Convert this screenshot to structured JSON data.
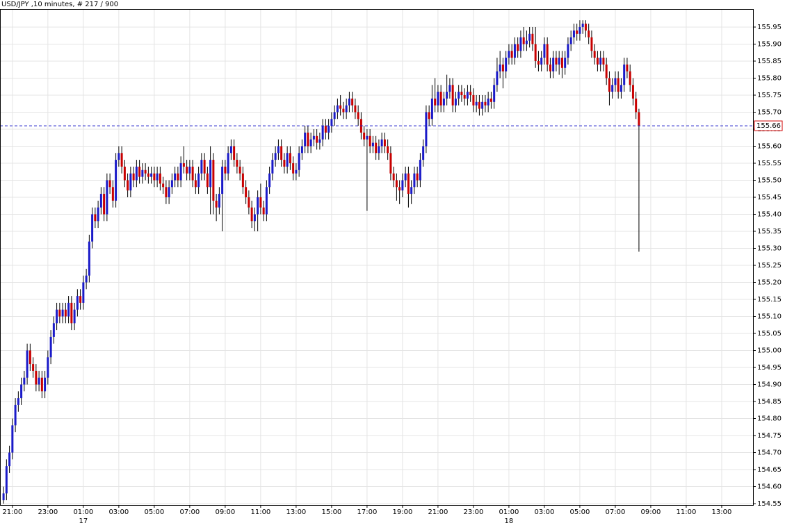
{
  "chart_data": {
    "type": "candlestick",
    "title": "USD/JPY ,10 minutes, # 217 / 900",
    "up_color": "#1a1ac8",
    "down_color": "#c80000",
    "grid": true,
    "grid_color": "#e4e4e4",
    "last_price": 155.66,
    "last_price_color": "#1a1ac8",
    "last_price_label_color": "#d00000",
    "open": [
      154.56,
      154.58,
      154.66,
      154.7,
      154.78,
      154.84,
      154.86,
      154.9,
      154.92,
      155.0,
      154.96,
      154.94,
      154.9,
      154.92,
      154.88,
      154.92,
      154.98,
      155.04,
      155.08,
      155.12,
      155.1,
      155.12,
      155.1,
      155.14,
      155.08,
      155.12,
      155.16,
      155.14,
      155.2,
      155.22,
      155.32,
      155.4,
      155.38,
      155.42,
      155.46,
      155.4,
      155.5,
      155.48,
      155.44,
      155.56,
      155.58,
      155.54,
      155.5,
      155.47,
      155.52,
      155.5,
      155.54,
      155.51,
      155.53,
      155.52,
      155.51,
      155.52,
      155.5,
      155.52,
      155.49,
      155.48,
      155.45,
      155.48,
      155.5,
      155.52,
      155.5,
      155.55,
      155.54,
      155.52,
      155.54,
      155.5,
      155.48,
      155.52,
      155.56,
      155.52,
      155.48,
      155.56,
      155.44,
      155.42,
      155.46,
      155.54,
      155.52,
      155.58,
      155.6,
      155.56,
      155.54,
      155.52,
      155.48,
      155.45,
      155.42,
      155.38,
      155.4,
      155.45,
      155.42,
      155.4,
      155.48,
      155.52,
      155.56,
      155.58,
      155.6,
      155.56,
      155.54,
      155.58,
      155.55,
      155.52,
      155.53,
      155.58,
      155.6,
      155.64,
      155.6,
      155.62,
      155.63,
      155.61,
      155.62,
      155.66,
      155.64,
      155.66,
      155.68,
      155.7,
      155.72,
      155.71,
      155.7,
      155.72,
      155.74,
      155.72,
      155.7,
      155.68,
      155.64,
      155.62,
      155.63,
      155.6,
      155.61,
      155.58,
      155.6,
      155.62,
      155.6,
      155.58,
      155.52,
      155.5,
      155.48,
      155.47,
      155.5,
      155.52,
      155.46,
      155.48,
      155.52,
      155.5,
      155.56,
      155.6,
      155.7,
      155.68,
      155.74,
      155.72,
      155.76,
      155.72,
      155.74,
      155.76,
      155.78,
      155.72,
      155.74,
      155.76,
      155.75,
      155.74,
      155.76,
      155.75,
      155.72,
      155.73,
      155.71,
      155.73,
      155.72,
      155.74,
      155.73,
      155.78,
      155.82,
      155.84,
      155.82,
      155.86,
      155.88,
      155.86,
      155.9,
      155.88,
      155.92,
      155.9,
      155.91,
      155.93,
      155.9,
      155.85,
      155.84,
      155.86,
      155.9,
      155.84,
      155.82,
      155.86,
      155.84,
      155.86,
      155.83,
      155.86,
      155.9,
      155.92,
      155.94,
      155.93,
      155.95,
      155.96,
      155.94,
      155.92,
      155.88,
      155.86,
      155.84,
      155.86,
      155.84,
      155.8,
      155.76,
      155.78,
      155.8,
      155.76,
      155.78,
      155.84,
      155.82,
      155.78,
      155.74,
      155.7
    ],
    "high": [
      154.6,
      154.68,
      154.72,
      154.8,
      154.86,
      154.88,
      154.92,
      154.94,
      155.02,
      155.02,
      154.98,
      154.96,
      154.94,
      154.94,
      154.94,
      155.0,
      155.06,
      155.1,
      155.14,
      155.14,
      155.14,
      155.14,
      155.16,
      155.16,
      155.14,
      155.18,
      155.18,
      155.22,
      155.24,
      155.34,
      155.42,
      155.42,
      155.44,
      155.48,
      155.48,
      155.52,
      155.52,
      155.5,
      155.58,
      155.6,
      155.6,
      155.56,
      155.52,
      155.54,
      155.54,
      155.56,
      155.56,
      155.55,
      155.55,
      155.54,
      155.54,
      155.54,
      155.54,
      155.54,
      155.51,
      155.5,
      155.5,
      155.52,
      155.54,
      155.54,
      155.57,
      155.6,
      155.56,
      155.56,
      155.56,
      155.52,
      155.54,
      155.58,
      155.58,
      155.54,
      155.6,
      155.58,
      155.46,
      155.48,
      155.56,
      155.56,
      155.6,
      155.62,
      155.62,
      155.58,
      155.56,
      155.54,
      155.5,
      155.47,
      155.44,
      155.42,
      155.47,
      155.49,
      155.44,
      155.5,
      155.54,
      155.58,
      155.6,
      155.62,
      155.62,
      155.58,
      155.6,
      155.6,
      155.57,
      155.55,
      155.6,
      155.62,
      155.66,
      155.66,
      155.64,
      155.65,
      155.65,
      155.64,
      155.68,
      155.68,
      155.68,
      155.7,
      155.72,
      155.74,
      155.75,
      155.73,
      155.74,
      155.76,
      155.76,
      155.74,
      155.72,
      155.7,
      155.66,
      155.65,
      155.65,
      155.63,
      155.63,
      155.62,
      155.64,
      155.64,
      155.62,
      155.6,
      155.54,
      155.52,
      155.5,
      155.52,
      155.54,
      155.54,
      155.5,
      155.54,
      155.54,
      155.58,
      155.62,
      155.72,
      155.72,
      155.78,
      155.8,
      155.78,
      155.78,
      155.76,
      155.81,
      155.8,
      155.8,
      155.76,
      155.78,
      155.78,
      155.77,
      155.78,
      155.78,
      155.77,
      155.75,
      155.75,
      155.75,
      155.75,
      155.76,
      155.76,
      155.8,
      155.86,
      155.88,
      155.86,
      155.88,
      155.9,
      155.9,
      155.92,
      155.92,
      155.94,
      155.95,
      155.94,
      155.95,
      155.95,
      155.95,
      155.88,
      155.88,
      155.92,
      155.92,
      155.86,
      155.88,
      155.88,
      155.88,
      155.88,
      155.88,
      155.92,
      155.94,
      155.96,
      155.96,
      155.97,
      155.97,
      155.97,
      155.96,
      155.94,
      155.9,
      155.88,
      155.88,
      155.88,
      155.86,
      155.82,
      155.8,
      155.82,
      155.82,
      155.8,
      155.86,
      155.86,
      155.84,
      155.8,
      155.76,
      155.71
    ],
    "low": [
      154.55,
      154.56,
      154.64,
      154.68,
      154.76,
      154.82,
      154.84,
      154.88,
      154.9,
      154.94,
      154.92,
      154.88,
      154.88,
      154.86,
      154.86,
      154.9,
      154.96,
      155.02,
      155.06,
      155.08,
      155.08,
      155.08,
      155.08,
      155.06,
      155.06,
      155.1,
      155.12,
      155.12,
      155.18,
      155.2,
      155.3,
      155.36,
      155.36,
      155.4,
      155.38,
      155.38,
      155.46,
      155.42,
      155.42,
      155.54,
      155.52,
      155.48,
      155.45,
      155.45,
      155.48,
      155.48,
      155.49,
      155.49,
      155.5,
      155.49,
      155.49,
      155.48,
      155.48,
      155.47,
      155.46,
      155.43,
      155.43,
      155.46,
      155.48,
      155.48,
      155.48,
      155.52,
      155.5,
      155.5,
      155.48,
      155.46,
      155.46,
      155.5,
      155.5,
      155.46,
      155.4,
      155.4,
      155.38,
      155.4,
      155.35,
      155.5,
      155.5,
      155.56,
      155.54,
      155.52,
      155.5,
      155.46,
      155.43,
      155.4,
      155.36,
      155.35,
      155.35,
      155.4,
      155.38,
      155.38,
      155.46,
      155.5,
      155.54,
      155.56,
      155.54,
      155.52,
      155.52,
      155.53,
      155.5,
      155.5,
      155.51,
      155.56,
      155.58,
      155.58,
      155.58,
      155.6,
      155.59,
      155.59,
      155.6,
      155.62,
      155.62,
      155.64,
      155.66,
      155.68,
      155.69,
      155.68,
      155.68,
      155.7,
      155.7,
      155.68,
      155.66,
      155.62,
      155.6,
      155.41,
      155.58,
      155.58,
      155.56,
      155.56,
      155.58,
      155.58,
      155.56,
      155.5,
      155.48,
      155.44,
      155.43,
      155.45,
      155.48,
      155.42,
      155.43,
      155.46,
      155.48,
      155.48,
      155.54,
      155.58,
      155.66,
      155.66,
      155.7,
      155.7,
      155.7,
      155.7,
      155.72,
      155.74,
      155.7,
      155.7,
      155.72,
      155.73,
      155.72,
      155.72,
      155.73,
      155.7,
      155.7,
      155.69,
      155.69,
      155.7,
      155.7,
      155.71,
      155.71,
      155.76,
      155.8,
      155.77,
      155.8,
      155.84,
      155.84,
      155.84,
      155.86,
      155.86,
      155.88,
      155.88,
      155.89,
      155.88,
      155.83,
      155.82,
      155.82,
      155.84,
      155.82,
      155.8,
      155.8,
      155.82,
      155.81,
      155.8,
      155.81,
      155.84,
      155.88,
      155.9,
      155.91,
      155.91,
      155.93,
      155.92,
      155.9,
      155.86,
      155.84,
      155.82,
      155.82,
      155.82,
      155.78,
      155.72,
      155.74,
      155.76,
      155.74,
      155.74,
      155.76,
      155.8,
      155.76,
      155.72,
      155.68,
      155.29
    ],
    "close": [
      154.58,
      154.66,
      154.7,
      154.78,
      154.84,
      154.86,
      154.9,
      154.92,
      155.0,
      154.96,
      154.94,
      154.9,
      154.92,
      154.88,
      154.92,
      154.98,
      155.04,
      155.08,
      155.12,
      155.1,
      155.12,
      155.1,
      155.14,
      155.08,
      155.12,
      155.16,
      155.14,
      155.2,
      155.22,
      155.32,
      155.4,
      155.38,
      155.42,
      155.46,
      155.4,
      155.5,
      155.48,
      155.44,
      155.56,
      155.58,
      155.54,
      155.5,
      155.47,
      155.52,
      155.5,
      155.54,
      155.51,
      155.53,
      155.52,
      155.51,
      155.52,
      155.5,
      155.52,
      155.49,
      155.48,
      155.45,
      155.48,
      155.5,
      155.52,
      155.5,
      155.55,
      155.54,
      155.52,
      155.54,
      155.5,
      155.48,
      155.52,
      155.56,
      155.52,
      155.48,
      155.56,
      155.44,
      155.42,
      155.46,
      155.54,
      155.52,
      155.58,
      155.6,
      155.56,
      155.54,
      155.52,
      155.48,
      155.45,
      155.42,
      155.38,
      155.4,
      155.45,
      155.42,
      155.4,
      155.48,
      155.52,
      155.56,
      155.58,
      155.6,
      155.56,
      155.54,
      155.58,
      155.55,
      155.52,
      155.53,
      155.58,
      155.6,
      155.64,
      155.6,
      155.62,
      155.63,
      155.61,
      155.62,
      155.66,
      155.64,
      155.66,
      155.68,
      155.7,
      155.72,
      155.71,
      155.7,
      155.72,
      155.74,
      155.72,
      155.7,
      155.68,
      155.64,
      155.62,
      155.63,
      155.6,
      155.61,
      155.58,
      155.6,
      155.62,
      155.6,
      155.58,
      155.52,
      155.5,
      155.48,
      155.47,
      155.5,
      155.52,
      155.46,
      155.48,
      155.52,
      155.5,
      155.56,
      155.6,
      155.7,
      155.68,
      155.74,
      155.72,
      155.76,
      155.72,
      155.74,
      155.76,
      155.78,
      155.72,
      155.74,
      155.76,
      155.75,
      155.74,
      155.76,
      155.75,
      155.72,
      155.73,
      155.71,
      155.73,
      155.72,
      155.74,
      155.73,
      155.78,
      155.82,
      155.84,
      155.82,
      155.86,
      155.88,
      155.86,
      155.9,
      155.88,
      155.92,
      155.9,
      155.91,
      155.93,
      155.9,
      155.85,
      155.84,
      155.86,
      155.9,
      155.84,
      155.82,
      155.86,
      155.84,
      155.86,
      155.83,
      155.86,
      155.9,
      155.92,
      155.94,
      155.93,
      155.95,
      155.96,
      155.94,
      155.92,
      155.88,
      155.86,
      155.84,
      155.86,
      155.84,
      155.8,
      155.76,
      155.78,
      155.8,
      155.76,
      155.78,
      155.84,
      155.82,
      155.78,
      155.74,
      155.7,
      155.66
    ],
    "xlim": [
      -1.2,
      253.6
    ],
    "xticks": [
      {
        "value": 3,
        "label": "21:00"
      },
      {
        "value": 15,
        "label": "23:00"
      },
      {
        "value": 27,
        "label": "01:00"
      },
      {
        "value": 39,
        "label": "03:00"
      },
      {
        "value": 51,
        "label": "05:00"
      },
      {
        "value": 63,
        "label": "07:00"
      },
      {
        "value": 75,
        "label": "09:00"
      },
      {
        "value": 87,
        "label": "11:00"
      },
      {
        "value": 99,
        "label": "13:00"
      },
      {
        "value": 111,
        "label": "15:00"
      },
      {
        "value": 123,
        "label": "17:00"
      },
      {
        "value": 135,
        "label": "19:00"
      },
      {
        "value": 147,
        "label": "21:00"
      },
      {
        "value": 159,
        "label": "23:00"
      },
      {
        "value": 171,
        "label": "01:00"
      },
      {
        "value": 183,
        "label": "03:00"
      },
      {
        "value": 195,
        "label": "05:00"
      },
      {
        "value": 207,
        "label": "07:00"
      },
      {
        "value": 219,
        "label": "09:00"
      },
      {
        "value": 231,
        "label": "11:00"
      },
      {
        "value": 243,
        "label": "13:00"
      }
    ],
    "day_labels": [
      {
        "value": 27,
        "label": "17"
      },
      {
        "value": 171,
        "label": "18"
      }
    ],
    "ylim": [
      154.546,
      156.003
    ],
    "yticks": [
      154.55,
      {
        "value": 154.6,
        "label": "154.60"
      },
      154.65,
      {
        "value": 154.7,
        "label": "154.70"
      },
      154.75,
      {
        "value": 154.8,
        "label": "154.80"
      },
      154.85,
      {
        "value": 154.9,
        "label": "154.90"
      },
      154.95,
      {
        "value": 155,
        "label": "155.00"
      },
      155.05,
      {
        "value": 155.1,
        "label": "155.10"
      },
      155.15,
      {
        "value": 155.2,
        "label": "155.20"
      },
      155.25,
      {
        "value": 155.3,
        "label": "155.30"
      },
      155.35,
      {
        "value": 155.4,
        "label": "155.40"
      },
      155.45,
      {
        "value": 155.5,
        "label": "155.50"
      },
      155.55,
      {
        "value": 155.6,
        "label": "155.60"
      },
      155.65,
      {
        "value": 155.7,
        "label": "155.70"
      },
      155.75,
      {
        "value": 155.8,
        "label": "155.80"
      },
      155.85,
      {
        "value": 155.9,
        "label": "155.90"
      },
      155.95
    ]
  }
}
